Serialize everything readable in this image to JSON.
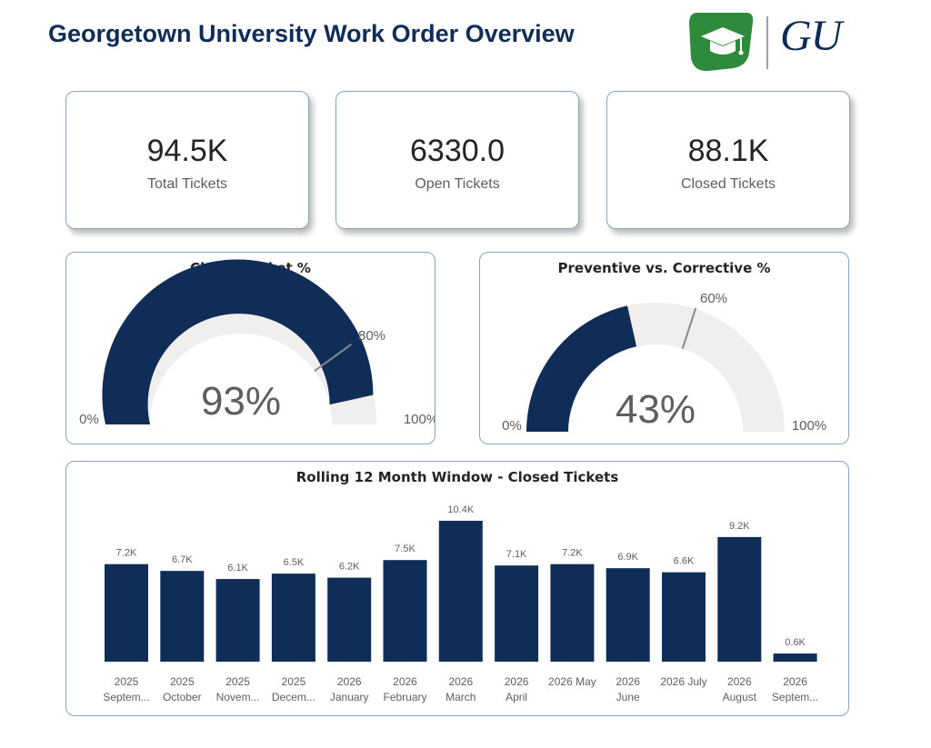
{
  "header": {
    "title": "Georgetown University Work Order Overview",
    "logo_text": "GU",
    "brand_color": "#0f2d57",
    "badge_color": "#2e8b3c",
    "badge_icon": "graduation-cap-icon"
  },
  "kpis": [
    {
      "value": "94.5K",
      "label": "Total Tickets"
    },
    {
      "value": "6330.0",
      "label": "Open Tickets"
    },
    {
      "value": "88.1K",
      "label": "Closed Tickets"
    }
  ],
  "gauges": [
    {
      "title": "Closed Ticket %",
      "value": 93,
      "value_label": "93%",
      "target": 80,
      "target_label": "80%",
      "min_label": "0%",
      "max_label": "100%",
      "fill_color": "#0f2d57",
      "track_color": "#f0efee"
    },
    {
      "title": "Preventive vs. Corrective %",
      "value": 43,
      "value_label": "43%",
      "target": 60,
      "target_label": "60%",
      "min_label": "0%",
      "max_label": "100%",
      "fill_color": "#0f2d57",
      "track_color": "#f0efee"
    }
  ],
  "chart_data": {
    "type": "bar",
    "title": "Rolling 12 Month Window - Closed Tickets",
    "categories": [
      [
        "2025",
        "Septem..."
      ],
      [
        "2025",
        "October"
      ],
      [
        "2025",
        "Novem..."
      ],
      [
        "2025",
        "Decem..."
      ],
      [
        "2026",
        "January"
      ],
      [
        "2026",
        "February"
      ],
      [
        "2026",
        "March"
      ],
      [
        "2026",
        "April"
      ],
      [
        "2026 May"
      ],
      [
        "2026",
        "June"
      ],
      [
        "2026 July"
      ],
      [
        "2026",
        "August"
      ],
      [
        "2026",
        "Septem..."
      ]
    ],
    "values": [
      7.2,
      6.7,
      6.1,
      6.5,
      6.2,
      7.5,
      10.4,
      7.1,
      7.2,
      6.9,
      6.6,
      9.2,
      0.6
    ],
    "data_labels": [
      "7.2K",
      "6.7K",
      "6.1K",
      "6.5K",
      "6.2K",
      "7.5K",
      "10.4K",
      "7.1K",
      "7.2K",
      "6.9K",
      "6.6K",
      "9.2K",
      "0.6K"
    ],
    "ylim": [
      0,
      10.4
    ],
    "bar_color": "#0f2d57"
  }
}
